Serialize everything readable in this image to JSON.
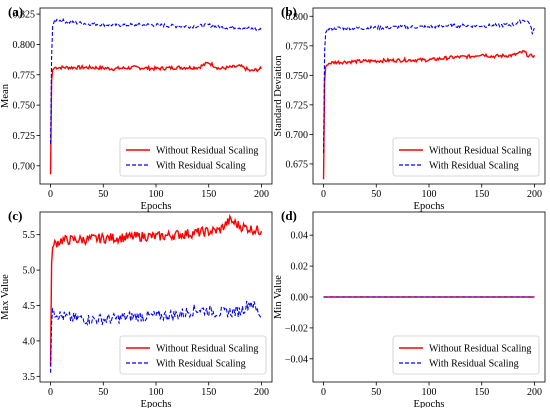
{
  "chart_data": [
    {
      "type": "line",
      "panel_label": "(a)",
      "xlabel": "Epochs",
      "ylabel": "Mean",
      "xlim": [
        -10,
        210
      ],
      "ylim": [
        0.685,
        0.83
      ],
      "xticks": [
        0,
        50,
        100,
        150,
        200
      ],
      "yticks": [
        0.7,
        0.725,
        0.75,
        0.775,
        0.8,
        0.825
      ],
      "ytick_labels": [
        "0.700",
        "0.725",
        "0.750",
        "0.775",
        "0.800",
        "0.825"
      ],
      "legend_loc": "lower-right",
      "series": [
        {
          "name": "Without Residual Scaling",
          "color": "#ff0000",
          "dash": "solid",
          "x": [
            0,
            1,
            2,
            4,
            8,
            20,
            40,
            60,
            80,
            100,
            120,
            140,
            150,
            160,
            180,
            190,
            200
          ],
          "y": [
            0.693,
            0.77,
            0.779,
            0.781,
            0.781,
            0.781,
            0.781,
            0.78,
            0.781,
            0.78,
            0.781,
            0.781,
            0.785,
            0.78,
            0.782,
            0.778,
            0.78
          ],
          "noise": 0.0015
        },
        {
          "name": "With Residual Scaling",
          "color": "#0000ff",
          "dash": "dashed",
          "x": [
            0,
            1,
            2,
            4,
            8,
            20,
            40,
            60,
            80,
            100,
            120,
            140,
            150,
            160,
            180,
            190,
            200
          ],
          "y": [
            0.718,
            0.79,
            0.815,
            0.82,
            0.82,
            0.818,
            0.817,
            0.816,
            0.816,
            0.816,
            0.815,
            0.815,
            0.816,
            0.814,
            0.814,
            0.813,
            0.812
          ],
          "noise": 0.0015
        }
      ]
    },
    {
      "type": "line",
      "panel_label": "(b)",
      "xlabel": "Epochs",
      "ylabel": "Standard Deviation",
      "xlim": [
        -10,
        210
      ],
      "ylim": [
        0.658,
        0.807
      ],
      "xticks": [
        0,
        50,
        100,
        150,
        200
      ],
      "yticks": [
        0.675,
        0.7,
        0.725,
        0.75,
        0.775,
        0.8
      ],
      "ytick_labels": [
        "0.675",
        "0.700",
        "0.725",
        "0.750",
        "0.775",
        "0.800"
      ],
      "legend_loc": "lower-right",
      "series": [
        {
          "name": "Without Residual Scaling",
          "color": "#ff0000",
          "dash": "solid",
          "x": [
            0,
            1,
            2,
            4,
            10,
            40,
            80,
            100,
            120,
            140,
            150,
            160,
            180,
            190,
            195,
            200
          ],
          "y": [
            0.662,
            0.745,
            0.757,
            0.76,
            0.761,
            0.762,
            0.763,
            0.763,
            0.765,
            0.766,
            0.768,
            0.766,
            0.767,
            0.77,
            0.766,
            0.767
          ],
          "noise": 0.0015
        },
        {
          "name": "With Residual Scaling",
          "color": "#0000ff",
          "dash": "dashed",
          "x": [
            0,
            1,
            2,
            4,
            10,
            40,
            80,
            100,
            120,
            140,
            160,
            180,
            190,
            195,
            198,
            200
          ],
          "y": [
            0.684,
            0.77,
            0.786,
            0.789,
            0.79,
            0.79,
            0.791,
            0.791,
            0.792,
            0.792,
            0.792,
            0.793,
            0.797,
            0.795,
            0.786,
            0.79
          ],
          "noise": 0.0015
        }
      ]
    },
    {
      "type": "line",
      "panel_label": "(c)",
      "xlabel": "Epochs",
      "ylabel": "Max Value",
      "xlim": [
        -10,
        210
      ],
      "ylim": [
        3.42,
        5.82
      ],
      "xticks": [
        0,
        50,
        100,
        150,
        200
      ],
      "yticks": [
        3.5,
        4.0,
        4.5,
        5.0,
        5.5
      ],
      "ytick_labels": [
        "3.5",
        "4.0",
        "4.5",
        "5.0",
        "5.5"
      ],
      "legend_loc": "lower-right",
      "series": [
        {
          "name": "Without Residual Scaling",
          "color": "#ff0000",
          "dash": "solid",
          "x": [
            0,
            1,
            2,
            4,
            10,
            30,
            50,
            70,
            90,
            100,
            120,
            140,
            160,
            170,
            180,
            190,
            200
          ],
          "y": [
            3.65,
            5.1,
            5.32,
            5.37,
            5.42,
            5.43,
            5.45,
            5.46,
            5.48,
            5.47,
            5.5,
            5.53,
            5.56,
            5.7,
            5.62,
            5.58,
            5.55
          ],
          "noise": 0.07
        },
        {
          "name": "With Residual Scaling",
          "color": "#0000ff",
          "dash": "dashed",
          "x": [
            0,
            1,
            2,
            4,
            10,
            20,
            40,
            60,
            80,
            100,
            120,
            140,
            160,
            180,
            190,
            195,
            200
          ],
          "y": [
            3.55,
            4.25,
            4.45,
            4.4,
            4.35,
            4.32,
            4.3,
            4.31,
            4.35,
            4.35,
            4.37,
            4.45,
            4.4,
            4.42,
            4.55,
            4.45,
            4.35
          ],
          "noise": 0.08
        }
      ]
    },
    {
      "type": "line",
      "panel_label": "(d)",
      "xlabel": "Epochs",
      "ylabel": "Min Value",
      "xlim": [
        -10,
        210
      ],
      "ylim": [
        -0.055,
        0.055
      ],
      "xticks": [
        0,
        50,
        100,
        150,
        200
      ],
      "yticks": [
        -0.04,
        -0.02,
        0.0,
        0.02,
        0.04
      ],
      "ytick_labels": [
        "−0.04",
        "−0.02",
        "0.00",
        "0.02",
        "0.04"
      ],
      "legend_loc": "lower-right",
      "series": [
        {
          "name": "Without Residual Scaling",
          "color": "#ff0000",
          "dash": "solid",
          "x": [
            0,
            200
          ],
          "y": [
            0.0,
            0.0
          ],
          "noise": 0
        },
        {
          "name": "With Residual Scaling",
          "color": "#0000ff",
          "dash": "dashed",
          "x": [
            0,
            200
          ],
          "y": [
            0.0,
            0.0
          ],
          "noise": 0
        }
      ]
    }
  ]
}
